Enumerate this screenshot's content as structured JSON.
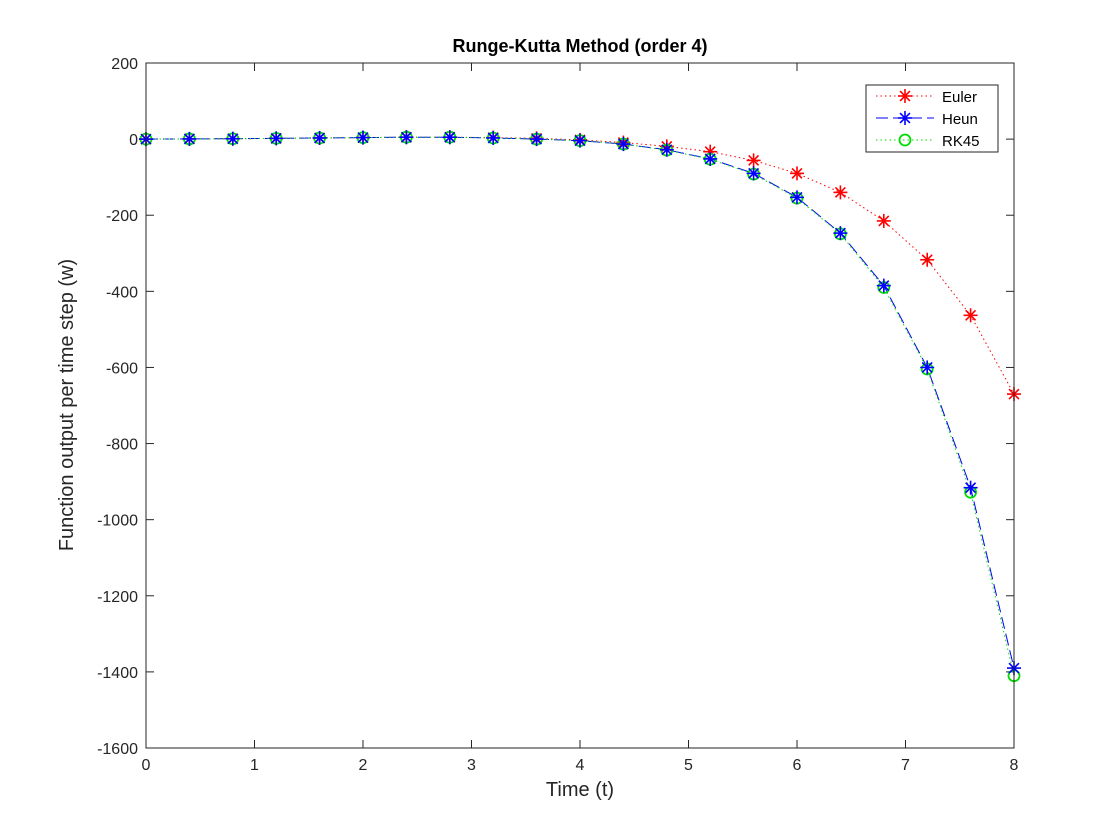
{
  "chart_data": {
    "type": "line",
    "title": "Runge-Kutta Method (order 4)",
    "xlabel": "Time (t)",
    "ylabel": "Function output per time step (w)",
    "xlim": [
      0,
      8
    ],
    "ylim": [
      -1600,
      200
    ],
    "xticks": [
      "0",
      "1",
      "2",
      "3",
      "4",
      "5",
      "6",
      "7",
      "8"
    ],
    "yticks": [
      "200",
      "0",
      "-200",
      "-400",
      "-600",
      "-800",
      "-1000",
      "-1200",
      "-1400",
      "-1600"
    ],
    "grid": false,
    "legend_position": "top-right",
    "x": [
      0,
      0.4,
      0.8,
      1.2,
      1.6,
      2.0,
      2.4,
      2.8,
      3.2,
      3.6,
      4.0,
      4.4,
      4.8,
      5.2,
      5.6,
      6.0,
      6.4,
      6.8,
      7.2,
      7.6,
      8.0
    ],
    "series": [
      {
        "name": "Euler",
        "color": "#ff0000",
        "line_style": "dotted",
        "marker": "asterisk",
        "values": [
          0,
          0.5,
          1,
          2,
          3,
          4,
          5,
          5,
          4,
          2,
          -2,
          -9,
          -19,
          -33,
          -56,
          -90,
          -140,
          -215,
          -317,
          -463,
          -670
        ]
      },
      {
        "name": "Heun",
        "color": "#0000ff",
        "line_style": "dashed",
        "marker": "asterisk",
        "values": [
          0,
          0.5,
          1,
          2,
          3,
          4,
          5,
          5,
          3,
          0,
          -4,
          -13,
          -28,
          -52,
          -90,
          -153,
          -247,
          -385,
          -600,
          -916,
          -1390
        ]
      },
      {
        "name": "RK45",
        "color": "#00dd00",
        "line_style": "dotted",
        "marker": "circle",
        "values": [
          0,
          0.5,
          1,
          2,
          3,
          4,
          5,
          5,
          3,
          0,
          -4,
          -13,
          -29,
          -53,
          -92,
          -155,
          -249,
          -390,
          -604,
          -928,
          -1410
        ]
      }
    ]
  }
}
